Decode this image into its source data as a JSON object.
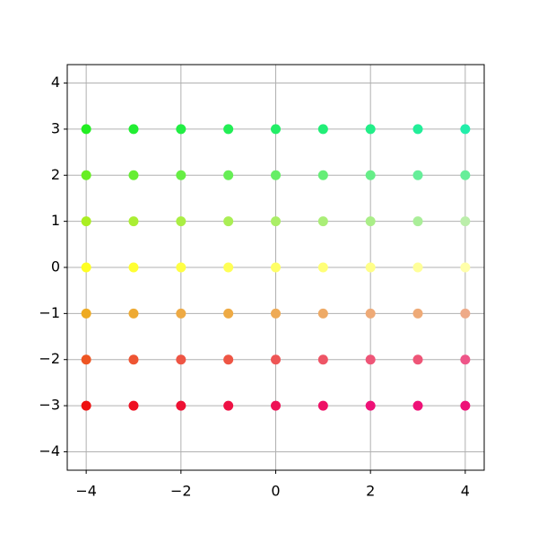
{
  "chart_data": {
    "type": "scatter",
    "x": [
      -4,
      -3,
      -2,
      -1,
      0,
      1,
      2,
      3,
      4,
      -4,
      -3,
      -2,
      -1,
      0,
      1,
      2,
      3,
      4,
      -4,
      -3,
      -2,
      -1,
      0,
      1,
      2,
      3,
      4,
      -4,
      -3,
      -2,
      -1,
      0,
      1,
      2,
      3,
      4,
      -4,
      -3,
      -2,
      -1,
      0,
      1,
      2,
      3,
      4,
      -4,
      -3,
      -2,
      -1,
      0,
      1,
      2,
      3,
      4,
      -4,
      -3,
      -2,
      -1,
      0,
      1,
      2,
      3,
      4
    ],
    "y": [
      -3,
      -3,
      -3,
      -3,
      -3,
      -3,
      -3,
      -3,
      -3,
      -2,
      -2,
      -2,
      -2,
      -2,
      -2,
      -2,
      -2,
      -2,
      -1,
      -1,
      -1,
      -1,
      -1,
      -1,
      -1,
      -1,
      -1,
      0,
      0,
      0,
      0,
      0,
      0,
      0,
      0,
      0,
      1,
      1,
      1,
      1,
      1,
      1,
      1,
      1,
      1,
      2,
      2,
      2,
      2,
      2,
      2,
      2,
      2,
      2,
      3,
      3,
      3,
      3,
      3,
      3,
      3,
      3,
      3
    ],
    "colors": [
      "#ee1111",
      "#ee1122",
      "#ee1133",
      "#ee1144",
      "#ee1155",
      "#ee1166",
      "#ee1177",
      "#ee1177",
      "#ee1177",
      "#ee5522",
      "#ee5533",
      "#ee5544",
      "#ee5544",
      "#ee5555",
      "#ee5566",
      "#ee5577",
      "#ee5577",
      "#ee5588",
      "#eeaa22",
      "#eeaa33",
      "#eeaa44",
      "#eeaa44",
      "#eeaa55",
      "#eeaa66",
      "#eeaa77",
      "#eeaa77",
      "#eeaa88",
      "#ffff22",
      "#ffff33",
      "#ffff44",
      "#ffff55",
      "#ffff66",
      "#ffff77",
      "#ffff88",
      "#ffff99",
      "#ffffaa",
      "#aaee22",
      "#aaee33",
      "#aaee44",
      "#aaee55",
      "#aaee66",
      "#aaee77",
      "#aaee88",
      "#aaee99",
      "#bbeeaa",
      "#66ee22",
      "#66ee33",
      "#66ee44",
      "#66ee55",
      "#66ee66",
      "#66ee77",
      "#66ee88",
      "#66ee99",
      "#66ee99",
      "#22ee22",
      "#22ee33",
      "#22ee44",
      "#22ee55",
      "#22ee66",
      "#22ee77",
      "#22ee88",
      "#22ee99",
      "#22eeaa"
    ],
    "xlim": [
      -4.4,
      4.4
    ],
    "ylim": [
      -4.4,
      4.4
    ],
    "xticks": [
      {
        "value": -4,
        "label": "−4"
      },
      {
        "value": -2,
        "label": "−2"
      },
      0,
      2,
      4
    ],
    "yticks": [
      {
        "value": -4,
        "label": "−4"
      },
      {
        "value": -3,
        "label": "−3"
      },
      {
        "value": -2,
        "label": "−2"
      },
      {
        "value": -1,
        "label": "−1"
      },
      0,
      1,
      2,
      3,
      4
    ],
    "grid": true
  }
}
